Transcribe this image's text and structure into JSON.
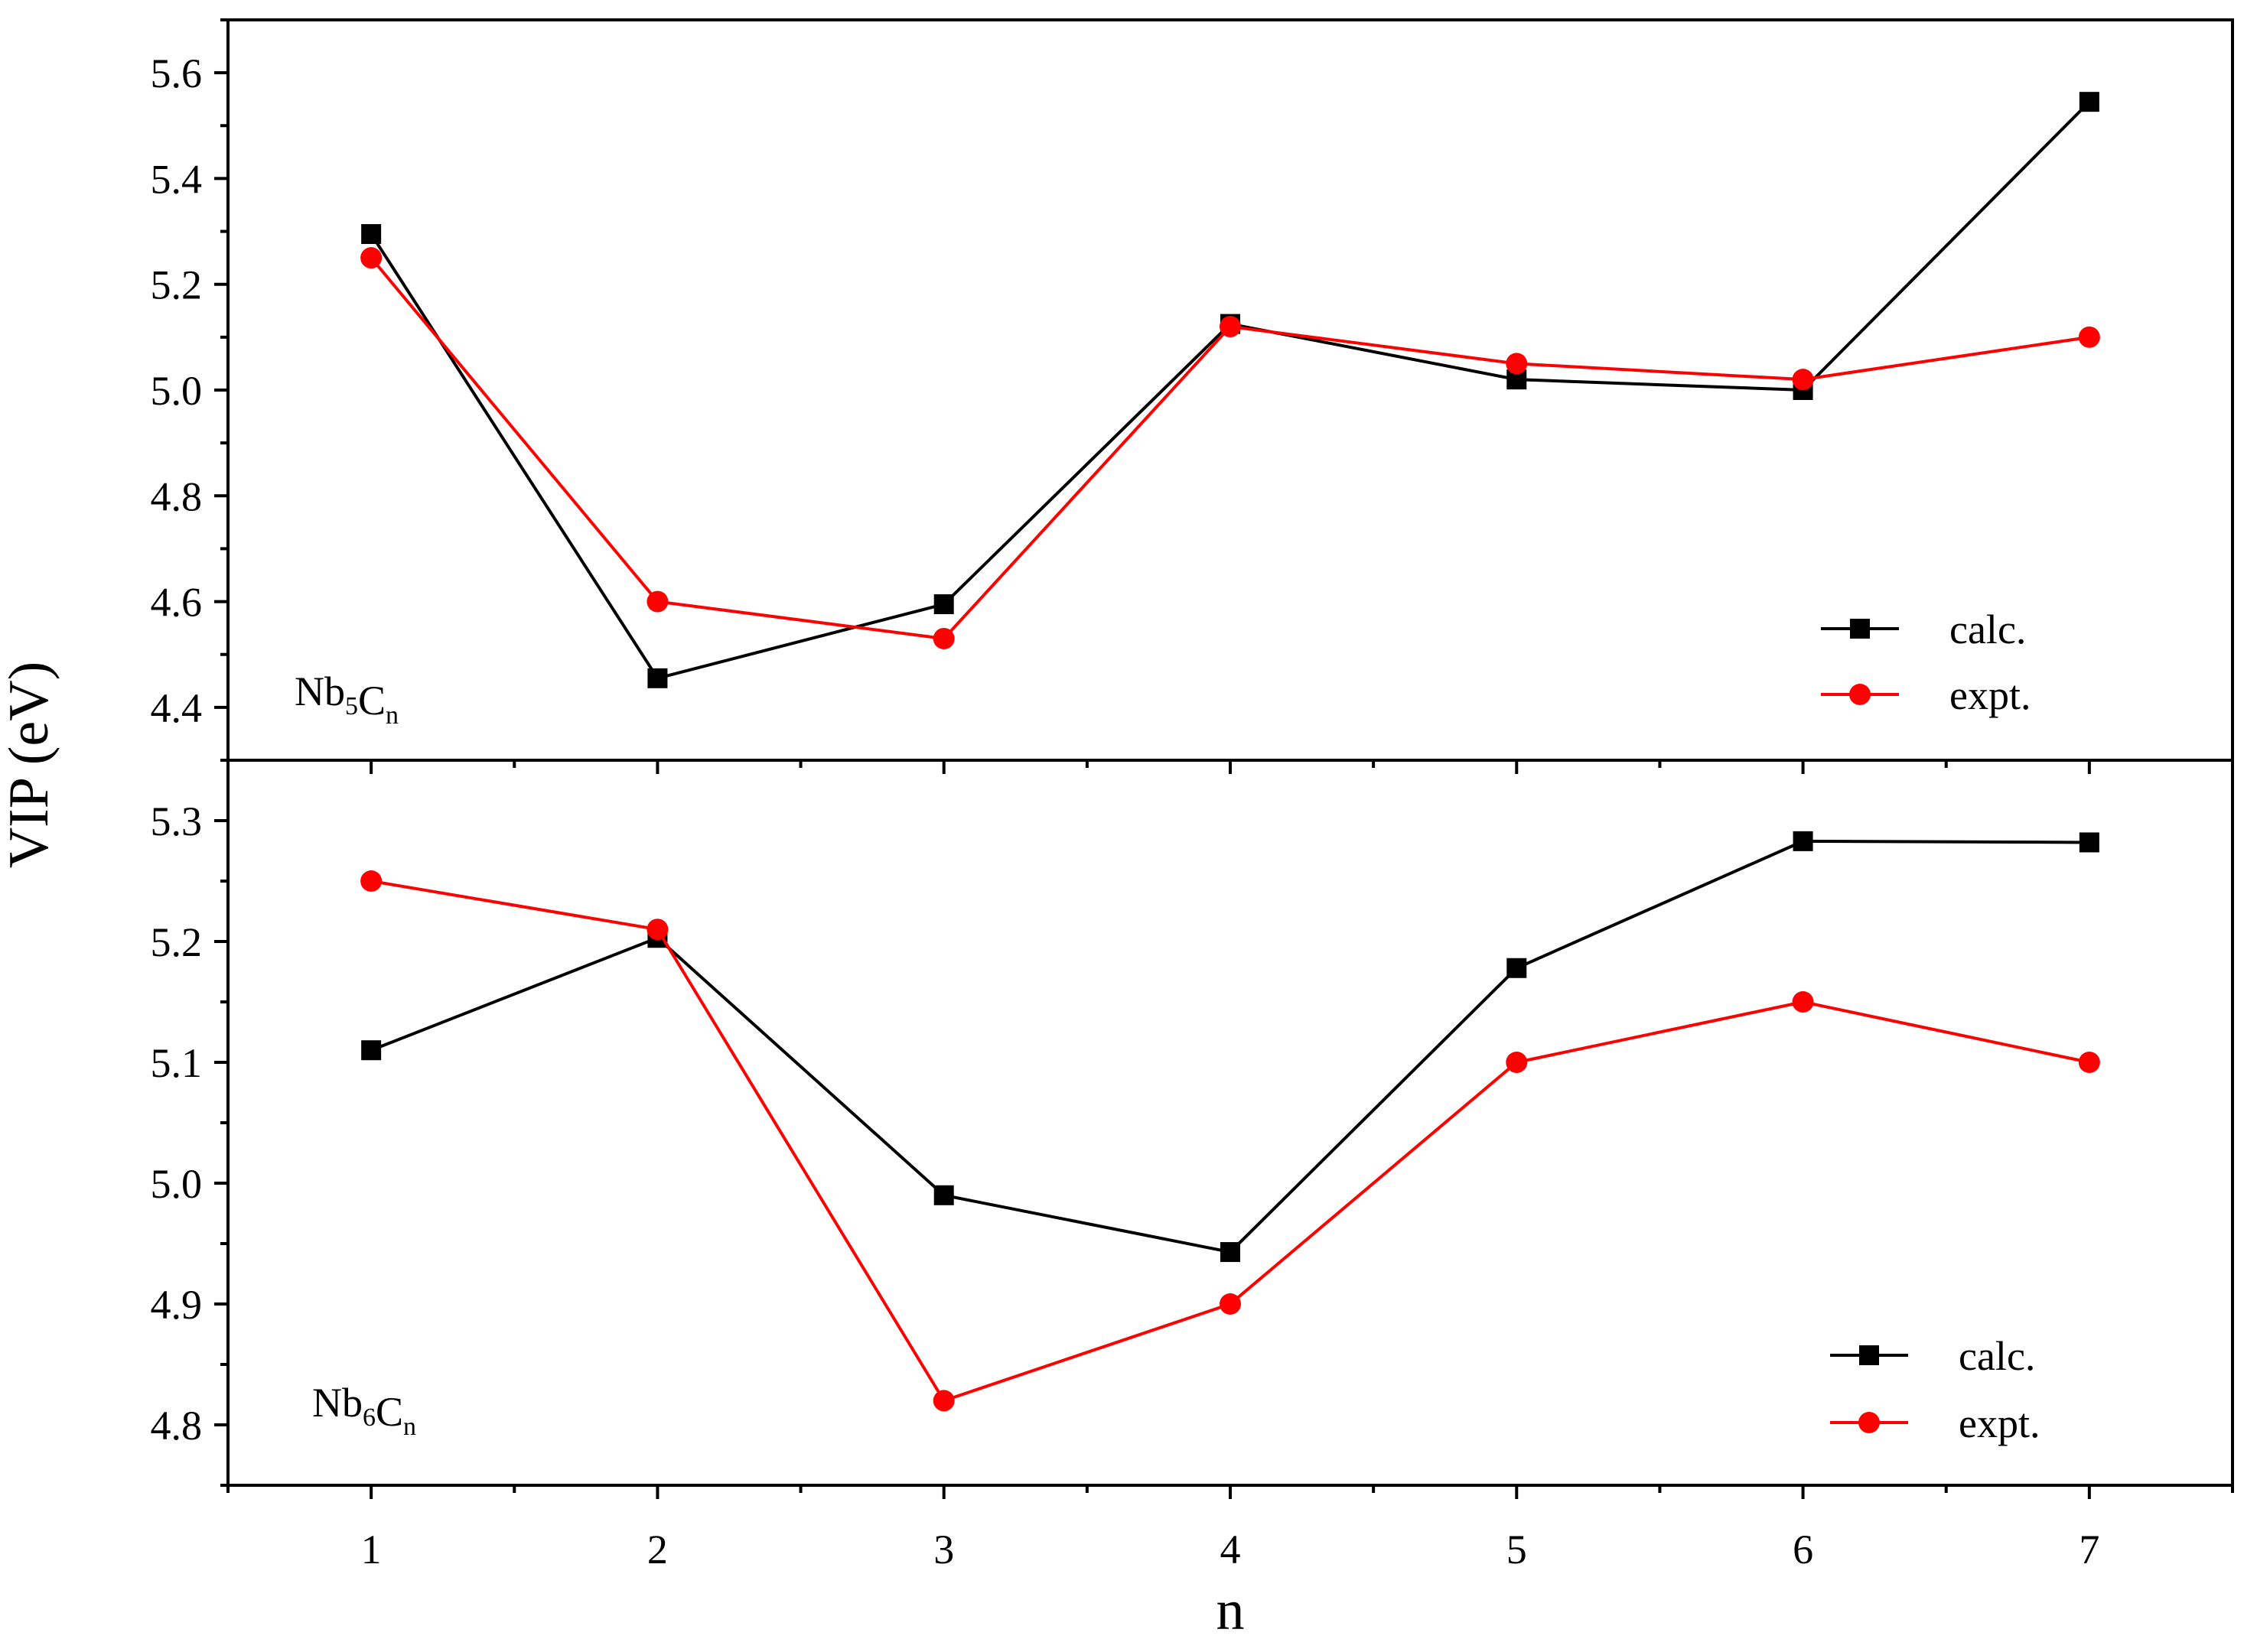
{
  "chart_data": [
    {
      "type": "line",
      "panel_label": {
        "base": "Nb",
        "sub1": "5",
        "mid": "C",
        "sub2": "n"
      },
      "xlabel": "n",
      "ylabel": "VIP (eV)",
      "x": [
        1,
        2,
        3,
        4,
        5,
        6,
        7
      ],
      "xlim": [
        0.5,
        7.5
      ],
      "ylim": [
        4.3,
        5.7
      ],
      "yticks": [
        4.4,
        4.6,
        4.8,
        5.0,
        5.2,
        5.4,
        5.6
      ],
      "ytick_labels": [
        "4.4",
        "4.6",
        "4.8",
        "5.0",
        "5.2",
        "5.4",
        "5.6"
      ],
      "legend_position": "bottom-right",
      "series": [
        {
          "name": "calc.",
          "color": "#000000",
          "marker": "square",
          "values": [
            5.295,
            4.455,
            4.595,
            5.125,
            5.02,
            5.0,
            5.545
          ]
        },
        {
          "name": "expt.",
          "color": "#ff0000",
          "marker": "circle",
          "values": [
            5.25,
            4.6,
            4.53,
            5.12,
            5.05,
            5.02,
            5.1
          ]
        }
      ]
    },
    {
      "type": "line",
      "panel_label": {
        "base": "Nb",
        "sub1": "6",
        "mid": "C",
        "sub2": "n"
      },
      "xlabel": "n",
      "ylabel": "VIP (eV)",
      "x": [
        1,
        2,
        3,
        4,
        5,
        6,
        7
      ],
      "xlim": [
        0.5,
        7.5
      ],
      "ylim": [
        4.75,
        5.35
      ],
      "yticks": [
        4.8,
        4.9,
        5.0,
        5.1,
        5.2,
        5.3
      ],
      "ytick_labels": [
        "4.8",
        "4.9",
        "5.0",
        "5.1",
        "5.2",
        "5.3"
      ],
      "xtick_labels": [
        "1",
        "2",
        "3",
        "4",
        "5",
        "6",
        "7"
      ],
      "legend_position": "bottom-right",
      "series": [
        {
          "name": "calc.",
          "color": "#000000",
          "marker": "square",
          "values": [
            5.11,
            5.203,
            4.99,
            4.943,
            5.178,
            5.283,
            5.282
          ]
        },
        {
          "name": "expt.",
          "color": "#ff0000",
          "marker": "circle",
          "values": [
            5.25,
            5.21,
            4.82,
            4.9,
            5.1,
            5.15,
            5.1
          ]
        }
      ]
    }
  ],
  "axis": {
    "xlabel": "n",
    "ylabel": "VIP (eV)"
  }
}
